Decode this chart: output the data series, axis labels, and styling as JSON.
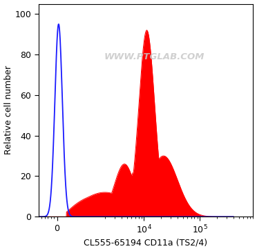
{
  "xlabel": "CL555-65194 CD11a (TS2/4)",
  "ylabel": "Relative cell number",
  "ylim": [
    0,
    105
  ],
  "yticks": [
    0,
    20,
    40,
    60,
    80,
    100
  ],
  "watermark": "WWW.PTGLAB.COM",
  "bg_color": "#ffffff",
  "plot_bg_color": "#ffffff",
  "red_color": "#ff0000",
  "blue_color": "#1a1aff",
  "linthresh": 1000,
  "linscale": 0.5,
  "xlim_min": -600,
  "xlim_max": 300000
}
